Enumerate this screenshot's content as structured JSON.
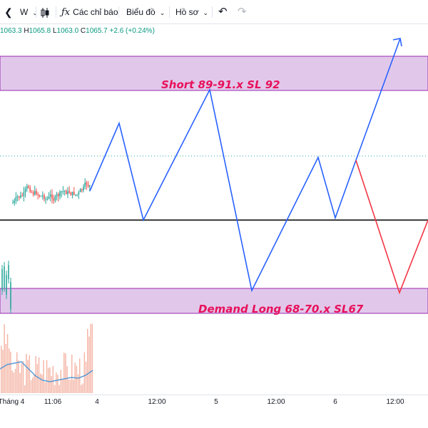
{
  "toolbar": {
    "interval": "W",
    "indicators_label": "Các chỉ báo",
    "chart_type_label": "Biểu đồ",
    "templates_label": "Hồ sơ",
    "icons": [
      "collapse-icon",
      "candles-icon",
      "indicators-icon",
      "caret-icon",
      "undo-icon",
      "redo-icon"
    ]
  },
  "ohlc": {
    "o": "1063.3",
    "h": "1065.8",
    "l": "1063.0",
    "c": "1065.7",
    "change": "+2.6 (+0.24%)"
  },
  "zones": {
    "short_label": "Short 89-91.x SL 92",
    "long_label": "Demand Long 68-70.x SL67"
  },
  "xaxis": {
    "labels": [
      "Tháng 4",
      "11:06",
      "4",
      "12:00",
      "5",
      "12:00",
      "6",
      "12:00"
    ]
  },
  "colors": {
    "zone_fill": "#e1c8eb",
    "zone_border": "#9c27b0",
    "projection_up": "#2962ff",
    "projection_down": "#f23645",
    "level_line": "#000000",
    "candle_up": "#26a69a",
    "candle_down": "#ef5350",
    "volume_up": "#f5b7a8",
    "volume_ma": "#5b9bd5",
    "label": "#e8115b"
  },
  "chart_data": {
    "type": "line",
    "title": "",
    "yaxis_visible": false,
    "grid": false,
    "series": [
      {
        "values": []
      }
    ]
  }
}
